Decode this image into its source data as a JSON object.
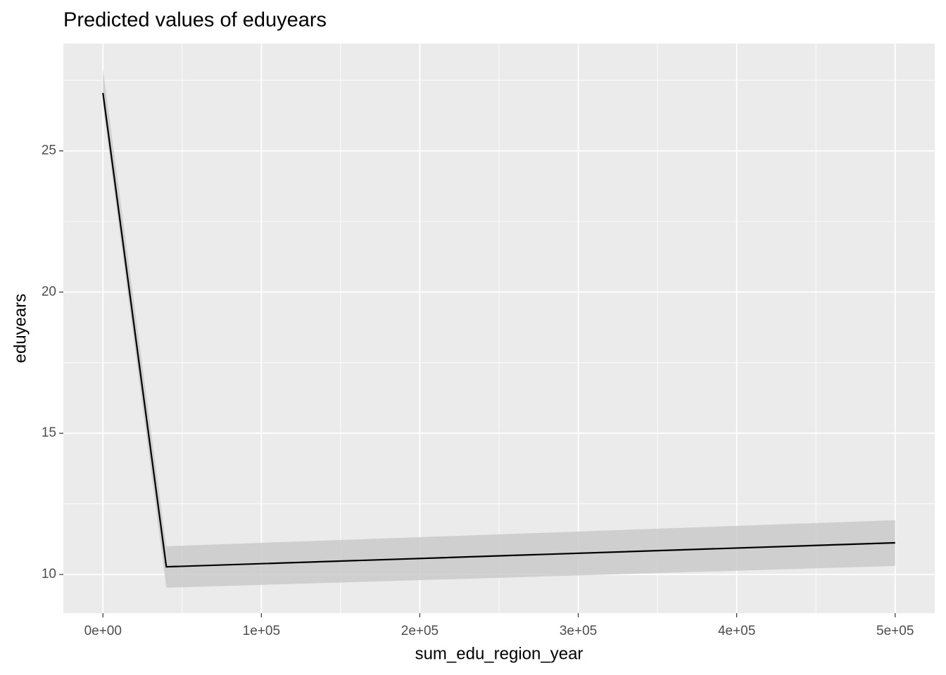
{
  "chart_data": {
    "type": "ribbon-line",
    "title": "Predicted values of eduyears",
    "x_label": "sum_edu_region_year",
    "y_label": "eduyears",
    "x": [
      0,
      40000,
      500000
    ],
    "y": [
      27.05,
      10.27,
      11.12
    ],
    "ymin": [
      26.6,
      9.53,
      10.3
    ],
    "ymax": [
      27.9,
      11.0,
      11.92
    ],
    "color": "#000000",
    "ribbon_color": "#c8c8c8",
    "xlim": [
      -25000,
      525000
    ],
    "ylim": [
      8.63,
      28.8
    ],
    "xticks": [
      {
        "value": 0,
        "label": "0e+00"
      },
      {
        "value": 100000,
        "label": "1e+05"
      },
      {
        "value": 200000,
        "label": "2e+05"
      },
      {
        "value": 300000,
        "label": "3e+05"
      },
      {
        "value": 400000,
        "label": "4e+05"
      },
      {
        "value": 500000,
        "label": "5e+05"
      }
    ],
    "x_minor_ticks": [
      50000,
      150000,
      250000,
      350000,
      450000
    ],
    "yticks": [
      10,
      15,
      20,
      25
    ],
    "y_minor_ticks": [
      12.5,
      17.5,
      22.5,
      27.5
    ],
    "grid": true
  }
}
